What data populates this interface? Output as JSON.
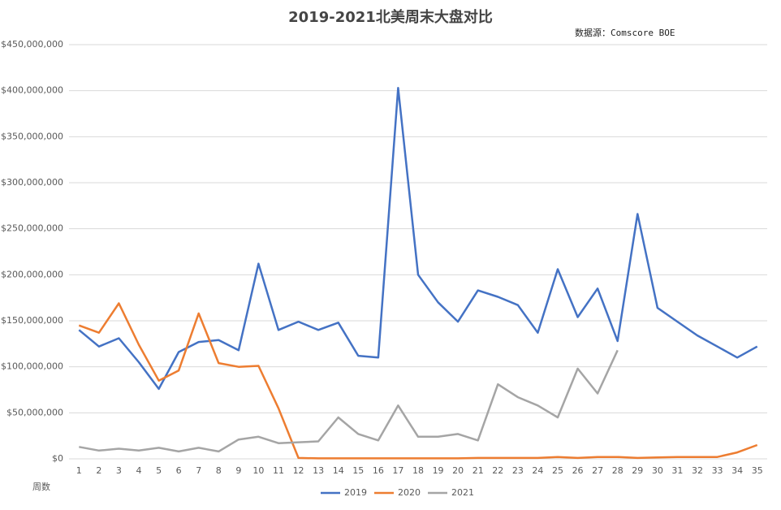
{
  "chart_data": {
    "type": "line",
    "title": "2019-2021北美周末大盘对比",
    "annotation": "数据源：Comscore BOE",
    "x_label": "周数",
    "categories": [
      "1",
      "2",
      "3",
      "4",
      "5",
      "6",
      "7",
      "8",
      "9",
      "10",
      "11",
      "12",
      "13",
      "14",
      "15",
      "16",
      "17",
      "18",
      "19",
      "20",
      "21",
      "22",
      "23",
      "24",
      "25",
      "26",
      "27",
      "28",
      "29",
      "30",
      "31",
      "32",
      "33",
      "34",
      "35"
    ],
    "series": [
      {
        "name": "2019",
        "color": "#4472c4",
        "values": [
          140000000,
          122000000,
          131000000,
          105000000,
          76000000,
          116000000,
          127000000,
          129000000,
          118000000,
          212000000,
          140000000,
          149000000,
          140000000,
          148000000,
          112000000,
          110000000,
          403000000,
          200000000,
          170000000,
          149000000,
          183000000,
          176000000,
          167000000,
          137000000,
          206000000,
          154000000,
          185000000,
          128000000,
          266000000,
          164000000,
          149000000,
          134000000,
          122000000,
          110000000,
          122000000
        ]
      },
      {
        "name": "2020",
        "color": "#ed7d31",
        "values": [
          145000000,
          137000000,
          169000000,
          124000000,
          85000000,
          96000000,
          158000000,
          104000000,
          100000000,
          101000000,
          55000000,
          1000000,
          500000,
          500000,
          500000,
          500000,
          500000,
          500000,
          500000,
          500000,
          1000000,
          1000000,
          1000000,
          1000000,
          2000000,
          1000000,
          2000000,
          2000000,
          1000000,
          1500000,
          2000000,
          2000000,
          2000000,
          7000000,
          15000000
        ]
      },
      {
        "name": "2021",
        "color": "#a5a5a5",
        "values": [
          13000000,
          9000000,
          11000000,
          9000000,
          12000000,
          8000000,
          12000000,
          8000000,
          21000000,
          24000000,
          17000000,
          18000000,
          19000000,
          45000000,
          27000000,
          20000000,
          58000000,
          24000000,
          24000000,
          27000000,
          20000000,
          81000000,
          67000000,
          58000000,
          45000000,
          98000000,
          71000000,
          118000000,
          null,
          null,
          null,
          null,
          null,
          null,
          null
        ]
      }
    ],
    "ylim": [
      0,
      450000000
    ],
    "yticks": [
      {
        "value": 0,
        "label": "$0"
      },
      {
        "value": 50000000,
        "label": "$50,000,000"
      },
      {
        "value": 100000000,
        "label": "$100,000,000"
      },
      {
        "value": 150000000,
        "label": "$150,000,000"
      },
      {
        "value": 200000000,
        "label": "$200,000,000"
      },
      {
        "value": 250000000,
        "label": "$250,000,000"
      },
      {
        "value": 300000000,
        "label": "$300,000,000"
      },
      {
        "value": 350000000,
        "label": "$350,000,000"
      },
      {
        "value": 400000000,
        "label": "$400,000,000"
      },
      {
        "value": 450000000,
        "label": "$450,000,000"
      }
    ],
    "grid": true,
    "legend": "bottom"
  }
}
